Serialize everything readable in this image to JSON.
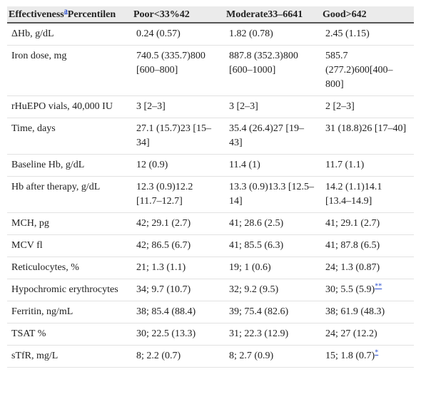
{
  "table": {
    "header": [
      {
        "text": "Effectiveness",
        "sup": "a",
        "after": "Percentilen"
      },
      "Poor<33%42",
      "Moderate33–6641",
      "Good>642"
    ],
    "rows": [
      [
        "ΔHb, g/dL",
        "0.24 (0.57)",
        "1.82 (0.78)",
        "2.45 (1.15)"
      ],
      [
        "Iron dose, mg",
        "740.5 (335.7)800 [600–800]",
        "887.8 (352.3)800 [600–1000]",
        "585.7 (277.2)600[400–800]"
      ],
      [
        "rHuEPO vials, 40,000 IU",
        "3 [2–3]",
        "3 [2–3]",
        "2 [2–3]"
      ],
      [
        "Time, days",
        "27.1 (15.7)23 [15–34]",
        "35.4 (26.4)27 [19–43]",
        "31 (18.8)26 [17–40]"
      ],
      [
        "Baseline Hb, g/dL",
        "12 (0.9)",
        "11.4 (1)",
        "11.7 (1.1)"
      ],
      [
        "Hb after therapy, g/dL",
        "12.3 (0.9)12.2 [11.7–12.7]",
        "13.3 (0.9)13.3 [12.5–14]",
        "14.2 (1.1)14.1 [13.4–14.9]"
      ],
      [
        "MCH, pg",
        "42; 29.1 (2.7)",
        "41; 28.6 (2.5)",
        "41; 29.1 (2.7)"
      ],
      [
        "MCV fl",
        "42; 86.5 (6.7)",
        "41; 85.5 (6.3)",
        "41; 87.8 (6.5)"
      ],
      [
        "Reticulocytes, %",
        "21; 1.3 (1.1)",
        "19; 1 (0.6)",
        "24; 1.3 (0.87)"
      ],
      [
        "Hypochromic erythrocytes",
        "34; 9.7 (10.7)",
        "32; 9.2 (9.5)",
        {
          "text": "30; 5.5 (5.9)",
          "sup": "**"
        }
      ],
      [
        "Ferritin, ng/mL",
        "38; 85.4 (88.4)",
        "39; 75.4 (82.6)",
        "38; 61.9 (48.3)"
      ],
      [
        "TSAT %",
        "30; 22.5 (13.3)",
        "31; 22.3 (12.9)",
        "24; 27 (12.2)"
      ],
      [
        "sTfR, mg/L",
        "8; 2.2 (0.7)",
        "8; 2.7 (0.9)",
        {
          "text": "15; 1.8 (0.7)",
          "sup": "*"
        }
      ]
    ]
  }
}
